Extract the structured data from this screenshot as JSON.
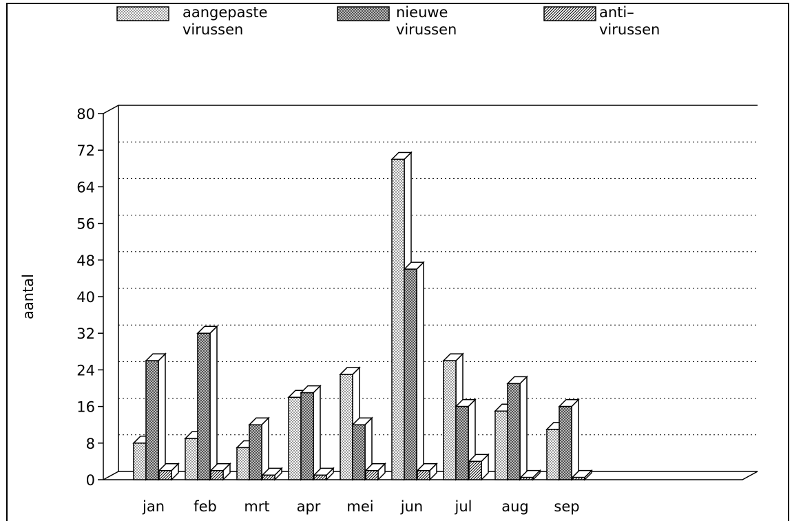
{
  "chart_data": {
    "type": "bar3d",
    "y_label": "aantal",
    "categories": [
      "jan",
      "feb",
      "mrt",
      "apr",
      "mei",
      "jun",
      "jul",
      "aug",
      "sep",
      null,
      null,
      null
    ],
    "series": [
      {
        "name": "aangepaste\nvirussen",
        "color": "#ffffff",
        "pattern": "dots",
        "values": [
          8,
          9,
          7,
          18,
          23,
          70,
          26,
          15,
          11,
          null,
          null,
          null
        ]
      },
      {
        "name": "nieuwe\nvirussen",
        "color": "#444444",
        "pattern": "crosshatch",
        "values": [
          26,
          32,
          12,
          19,
          12,
          46,
          16,
          21,
          16,
          null,
          null,
          null
        ]
      },
      {
        "name": "anti–\nvirussen",
        "color": "#ffffff",
        "pattern": "hatch",
        "values": [
          2,
          2,
          1,
          1,
          2,
          2,
          4,
          0.5,
          0.5,
          null,
          null,
          null
        ]
      }
    ],
    "ylim": [
      0,
      80
    ],
    "yticks": [
      0,
      8,
      16,
      24,
      32,
      40,
      48,
      56,
      64,
      72,
      80
    ],
    "grid": true
  }
}
